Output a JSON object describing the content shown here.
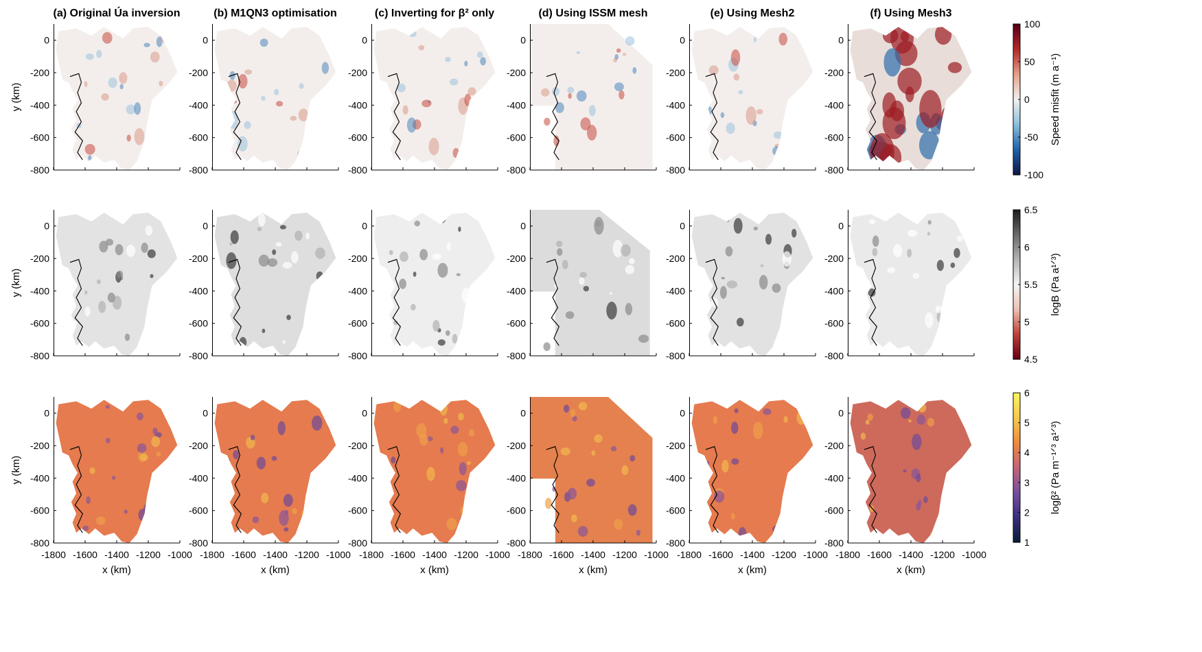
{
  "chart_data": {
    "type": "heatmap",
    "panel_titles": [
      "(a) Original Úa inversion",
      "(b) M1QN3 optimisation",
      "(c) Inverting for β² only",
      "(d) Using ISSM mesh",
      "(e) Using Mesh2",
      "(f) Using Mesh3"
    ],
    "xlabel": "x (km)",
    "ylabel": "y (km)",
    "xlim": [
      -1800,
      -1000
    ],
    "ylim": [
      -800,
      100
    ],
    "xticks": [
      "-1800",
      "-1600",
      "-1400",
      "-1200",
      "-1000"
    ],
    "yticks": [
      "0",
      "-200",
      "-400",
      "-600",
      "-800"
    ],
    "rows": [
      {
        "name": "Speed misfit",
        "colorbar_label": "Speed misfit (m a⁻¹)",
        "colormap": "blue-white-red (diverging)",
        "clim": [
          -100,
          100
        ],
        "colorbar_ticks": [
          "100",
          "50",
          "0",
          "-50",
          "-100"
        ],
        "colors": [
          "#0f1a4d",
          "#1f66ac",
          "#8ec0dd",
          "#f2f1ef",
          "#e8a28a",
          "#b52a26",
          "#5c0018"
        ]
      },
      {
        "name": "logB",
        "colorbar_label": "logB (Pa a¹ᐟ³)",
        "colormap": "dark red - white - black",
        "clim": [
          4.5,
          6.5
        ],
        "colorbar_ticks": [
          "6.5",
          "6",
          "5.5",
          "5",
          "4.5"
        ],
        "colors": [
          "#6e0014",
          "#c0453a",
          "#eec3b6",
          "#f4f4f4",
          "#b5b5b5",
          "#6d6d6d",
          "#202020"
        ]
      },
      {
        "name": "logβ²",
        "colorbar_label": "logβ² (Pa m⁻¹ᐟ³ a¹ᐟ³)",
        "colormap": "navy-purple-orange-yellow (thermal)",
        "clim": [
          1,
          6
        ],
        "colorbar_ticks": [
          "6",
          "5",
          "4",
          "3",
          "2",
          "1"
        ],
        "colors": [
          "#0b1e3a",
          "#3b2f80",
          "#7a4fa0",
          "#c56478",
          "#ef8a3d",
          "#f7c84c",
          "#fbf35c"
        ]
      }
    ]
  }
}
